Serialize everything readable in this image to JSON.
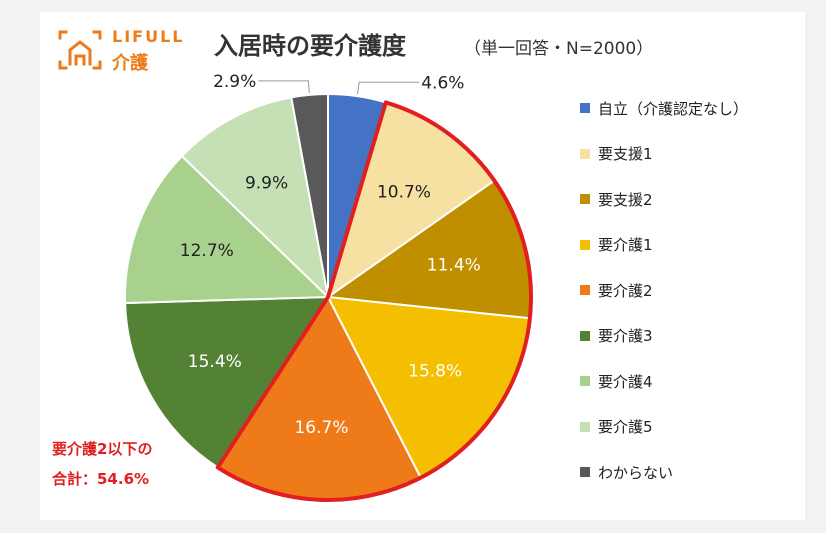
{
  "header": {
    "logo_text": "LIFULL",
    "logo_sub": "介護",
    "title": "入居時の要介護度",
    "subtitle": "（単一回答・N=2000）"
  },
  "colors": {
    "accent": "#ee7a1a",
    "highlight_outline": "#e02020"
  },
  "chart_data": {
    "type": "pie",
    "title": "入居時の要介護度",
    "subtitle": "（単一回答・N=2000）",
    "legend_position": "right",
    "unit": "%",
    "slices": [
      {
        "label": "自立（介護認定なし）",
        "value": 4.6,
        "display": "4.6%",
        "color": "#4472c4"
      },
      {
        "label": "要支援1",
        "value": 10.7,
        "display": "10.7%",
        "color": "#f7e1a2"
      },
      {
        "label": "要支援2",
        "value": 11.4,
        "display": "11.4%",
        "color": "#bf8f00"
      },
      {
        "label": "要介護1",
        "value": 15.8,
        "display": "15.8%",
        "color": "#f4bf00"
      },
      {
        "label": "要介護2",
        "value": 16.7,
        "display": "16.7%",
        "color": "#ee7a1a"
      },
      {
        "label": "要介護3",
        "value": 15.4,
        "display": "15.4%",
        "color": "#548235"
      },
      {
        "label": "要介護4",
        "value": 12.7,
        "display": "12.7%",
        "color": "#a9d18e"
      },
      {
        "label": "要介護5",
        "value": 9.9,
        "display": "9.9%",
        "color": "#c5e0b4"
      },
      {
        "label": "わからない",
        "value": 2.9,
        "display": "2.9%",
        "color": "#595959"
      }
    ],
    "highlight": {
      "slices": [
        "要支援1",
        "要支援2",
        "要介護1",
        "要介護2"
      ],
      "note_line1": "要介護2以下の",
      "note_line2": "合計：54.6%"
    }
  }
}
